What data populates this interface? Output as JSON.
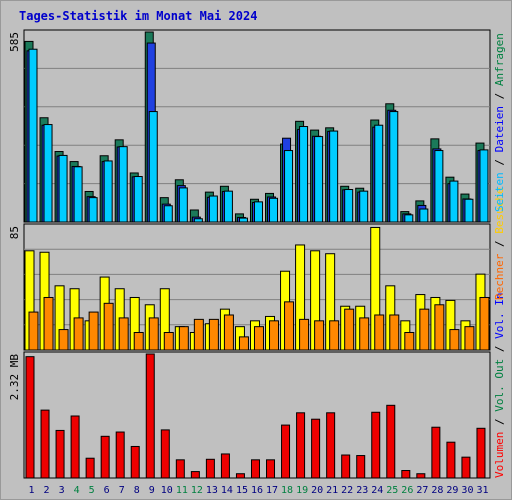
{
  "header": {
    "title": "Tages-Statistik im Monat Mai 2024"
  },
  "chart_data": [
    {
      "type": "bar",
      "panel": "top",
      "ymax_label": "585",
      "ylim": [
        0,
        585
      ],
      "grid": true,
      "categories": [
        "1",
        "2",
        "3",
        "4",
        "5",
        "6",
        "7",
        "8",
        "9",
        "10",
        "11",
        "12",
        "13",
        "14",
        "15",
        "16",
        "17",
        "18",
        "19",
        "20",
        "21",
        "22",
        "23",
        "24",
        "25",
        "26",
        "27",
        "28",
        "29",
        "30",
        "31"
      ],
      "weekend_days": [
        "4",
        "5",
        "11",
        "12",
        "18",
        "19",
        "25",
        "26"
      ],
      "series": [
        {
          "name": "Anfragen",
          "color": "#1b7a5a",
          "values": [
            556,
            321,
            217,
            186,
            94,
            204,
            253,
            151,
            585,
            75,
            130,
            37,
            92,
            110,
            25,
            70,
            88,
            240,
            310,
            283,
            290,
            110,
            104,
            314,
            364,
            32,
            65,
            256,
            138,
            86,
            243
          ]
        },
        {
          "name": "Dateien",
          "color": "#2040e0",
          "values": [
            527,
            298,
            203,
            171,
            78,
            186,
            231,
            139,
            551,
            55,
            112,
            15,
            76,
            94,
            14,
            60,
            77,
            258,
            285,
            264,
            279,
            99,
            92,
            292,
            344,
            25,
            51,
            225,
            118,
            71,
            220
          ]
        },
        {
          "name": "Seiten",
          "color": "#00ccff",
          "values": [
            532,
            300,
            205,
            170,
            75,
            188,
            232,
            140,
            340,
            50,
            105,
            10,
            80,
            95,
            12,
            62,
            73,
            220,
            294,
            263,
            280,
            100,
            95,
            298,
            340,
            22,
            40,
            220,
            126,
            70,
            222
          ]
        }
      ],
      "right_legend": [
        "Anfragen",
        "Dateien",
        "Seiten"
      ]
    },
    {
      "type": "bar",
      "panel": "middle",
      "ymax_label": "85",
      "ylim": [
        0,
        85
      ],
      "grid": true,
      "series": [
        {
          "name": "Besuche",
          "color": "#ffff00",
          "values": [
            68,
            67,
            44,
            42,
            20,
            50,
            42,
            36,
            31,
            42,
            16,
            12,
            18,
            28,
            16,
            20,
            23,
            54,
            72,
            68,
            66,
            30,
            30,
            84,
            44,
            20,
            38,
            36,
            34,
            20,
            52
          ]
        },
        {
          "name": "Rechner",
          "color": "#ff8800",
          "values": [
            26,
            36,
            14,
            22,
            26,
            32,
            22,
            12,
            22,
            12,
            16,
            21,
            21,
            24,
            9,
            16,
            20,
            33,
            21,
            20,
            20,
            28,
            22,
            24,
            24,
            12,
            28,
            31,
            14,
            16,
            36
          ]
        }
      ],
      "right_legend": [
        "Besuche",
        "Rechner"
      ]
    },
    {
      "type": "bar",
      "panel": "bottom",
      "ymax_label": "2.32 MB",
      "ylim": [
        0,
        2.32
      ],
      "grid": false,
      "series": [
        {
          "name": "Volumen",
          "color": "#ee0000",
          "values": [
            2.27,
            1.27,
            0.89,
            1.16,
            0.37,
            0.78,
            0.86,
            0.59,
            2.32,
            0.9,
            0.34,
            0.12,
            0.35,
            0.45,
            0.08,
            0.34,
            0.34,
            0.99,
            1.22,
            1.1,
            1.22,
            0.43,
            0.42,
            1.23,
            1.36,
            0.14,
            0.08,
            0.95,
            0.67,
            0.39,
            0.93
          ]
        }
      ],
      "right_legend": [
        "Vol. In",
        "Vol. Out",
        "Volumen"
      ]
    }
  ],
  "colors": {
    "title": "#0000cc",
    "legend_anfragen": "#008040",
    "legend_dateien": "#0000ff",
    "legend_seiten": "#00bbff",
    "legend_besuche": "#ffcc00",
    "legend_rechner": "#ff6600",
    "legend_vol_in": "#0000ff",
    "legend_vol_out": "#008040",
    "legend_volumen": "#ff0000",
    "weekend_tick": "#008040",
    "weekday_tick": "#000080"
  }
}
